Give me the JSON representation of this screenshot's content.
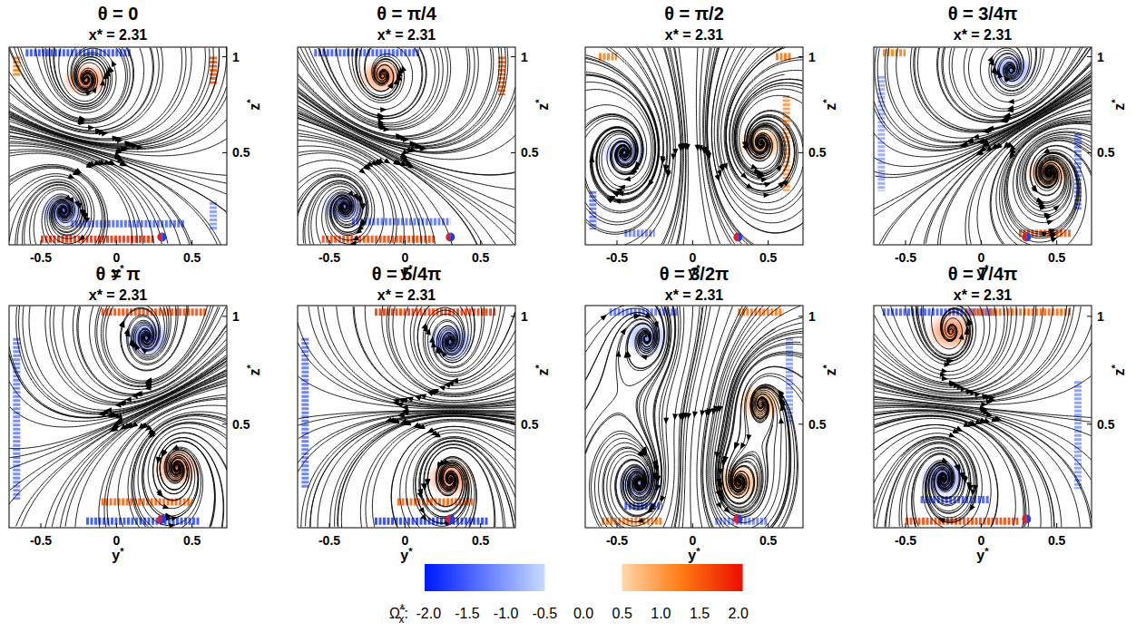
{
  "chart_data": {
    "type": "streamline",
    "xlabel": "y*",
    "ylabel": "z*",
    "xlim": [
      -0.71,
      0.73
    ],
    "ylim": [
      0.02,
      1.05
    ],
    "xticks": [
      -0.5,
      0,
      0.5
    ],
    "yticks": [
      0.5,
      1
    ],
    "probe": {
      "y": 0.3,
      "z": 0.06
    },
    "colorbar": {
      "base": "Ω̃",
      "sub": "x",
      "sup": "*",
      "end": ":",
      "range": [
        -2.05,
        2.05
      ],
      "ticks": [
        {
          "value": -2,
          "label": "-2.0"
        },
        {
          "value": -1.5,
          "label": "-1.5"
        },
        {
          "value": -1,
          "label": "-1.0"
        },
        {
          "value": -0.5,
          "label": "-0.5"
        },
        {
          "value": 0,
          "label": "0.0"
        },
        {
          "value": 0.5,
          "label": "0.5"
        },
        {
          "value": 1,
          "label": "1.0"
        },
        {
          "value": 1.5,
          "label": "1.5"
        },
        {
          "value": 2,
          "label": "2.0"
        }
      ]
    },
    "panels": [
      {
        "title": "θ = 0",
        "subtitle": "x* = 2.31",
        "vortices": [
          {
            "y": -0.2,
            "z": 0.88,
            "strength": 1.5
          },
          {
            "y": -0.35,
            "z": 0.2,
            "strength": -1.5
          }
        ],
        "wall_vorticity": [
          [
            -0.6,
            1.02,
            0.1,
            1.02,
            -1.6
          ],
          [
            0.64,
            1.0,
            0.64,
            0.85,
            1.5
          ],
          [
            -0.5,
            0.05,
            0.25,
            0.05,
            1.8
          ],
          [
            -0.3,
            0.13,
            0.45,
            0.13,
            -1.4
          ],
          [
            -0.66,
            1.0,
            -0.66,
            0.9,
            1.2
          ],
          [
            0.64,
            0.1,
            0.64,
            0.25,
            -1.0
          ]
        ]
      },
      {
        "title": "θ = π/4",
        "subtitle": "x* = 2.31",
        "vortices": [
          {
            "y": -0.15,
            "z": 0.9,
            "strength": 1.4
          },
          {
            "y": -0.4,
            "z": 0.22,
            "strength": -1.4
          }
        ],
        "wall_vorticity": [
          [
            -0.6,
            1.02,
            0.1,
            1.02,
            -1.5
          ],
          [
            -0.55,
            0.05,
            0.2,
            0.05,
            1.6
          ],
          [
            -0.35,
            0.14,
            0.3,
            0.14,
            -1.3
          ],
          [
            0.64,
            1.0,
            0.64,
            0.8,
            1.4
          ]
        ]
      },
      {
        "title": "θ = π/2",
        "subtitle": "x* = 2.31",
        "vortices": [
          {
            "y": -0.45,
            "z": 0.5,
            "strength": -1.2
          },
          {
            "y": 0.45,
            "z": 0.55,
            "strength": 1.2
          }
        ],
        "wall_vorticity": [
          [
            -0.66,
            0.3,
            -0.66,
            0.1,
            -1.3
          ],
          [
            0.62,
            0.8,
            0.62,
            0.3,
            1.0
          ],
          [
            -0.62,
            1.0,
            -0.5,
            1.0,
            1.2
          ],
          [
            0.55,
            1.0,
            0.65,
            1.0,
            1.3
          ],
          [
            -0.45,
            0.08,
            -0.25,
            0.08,
            -1.2
          ]
        ]
      },
      {
        "title": "θ = 3/4π",
        "subtitle": "x* = 2.31",
        "vortices": [
          {
            "y": 0.2,
            "z": 0.93,
            "strength": -1.3
          },
          {
            "y": 0.45,
            "z": 0.4,
            "strength": 1.3
          }
        ],
        "wall_vorticity": [
          [
            0.25,
            0.08,
            0.6,
            0.08,
            1.5
          ],
          [
            0.64,
            0.6,
            0.64,
            0.2,
            -1.2
          ],
          [
            -0.65,
            1.02,
            -0.5,
            1.02,
            1.2
          ],
          [
            -0.66,
            0.9,
            -0.66,
            0.3,
            -0.9
          ]
        ]
      },
      {
        "title": "θ = π",
        "subtitle": "x* = 2.31",
        "vortices": [
          {
            "y": 0.2,
            "z": 0.9,
            "strength": -1.5
          },
          {
            "y": 0.4,
            "z": 0.3,
            "strength": 1.5
          }
        ],
        "wall_vorticity": [
          [
            -0.1,
            1.02,
            0.6,
            1.02,
            1.6
          ],
          [
            -0.66,
            0.9,
            -0.66,
            0.15,
            -1.2
          ],
          [
            -0.2,
            0.05,
            0.55,
            0.05,
            -1.6
          ],
          [
            -0.1,
            0.14,
            0.5,
            0.14,
            1.4
          ]
        ]
      },
      {
        "title": "θ = 5/4π",
        "subtitle": "x* = 2.31",
        "vortices": [
          {
            "y": 0.3,
            "z": 0.88,
            "strength": -1.5
          },
          {
            "y": 0.3,
            "z": 0.25,
            "strength": 1.5
          }
        ],
        "wall_vorticity": [
          [
            -0.2,
            1.02,
            0.6,
            1.02,
            1.7
          ],
          [
            -0.66,
            0.9,
            -0.66,
            0.2,
            -1.3
          ],
          [
            -0.2,
            0.05,
            0.55,
            0.05,
            -1.7
          ],
          [
            -0.05,
            0.14,
            0.45,
            0.14,
            1.4
          ]
        ]
      },
      {
        "title": "θ = 3/2π",
        "subtitle": "x* = 2.31",
        "vortices": [
          {
            "y": -0.3,
            "z": 0.9,
            "strength": -1.1
          },
          {
            "y": 0.45,
            "z": 0.6,
            "strength": 1.1
          },
          {
            "y": -0.35,
            "z": 0.23,
            "strength": -1.2
          },
          {
            "y": 0.3,
            "z": 0.23,
            "strength": 1.2
          }
        ],
        "wall_vorticity": [
          [
            -0.55,
            1.02,
            -0.1,
            1.02,
            -1.3
          ],
          [
            0.3,
            1.02,
            0.6,
            1.02,
            1.3
          ],
          [
            -0.6,
            0.05,
            -0.2,
            0.05,
            1.3
          ],
          [
            -0.45,
            0.12,
            -0.2,
            0.12,
            -1.5
          ],
          [
            0.15,
            0.05,
            0.5,
            0.05,
            -1.2
          ],
          [
            0.64,
            0.9,
            0.64,
            0.5,
            -1.0
          ]
        ]
      },
      {
        "title": "θ = 7/4π",
        "subtitle": "x* = 2.31",
        "vortices": [
          {
            "y": -0.2,
            "z": 0.93,
            "strength": 1.5
          },
          {
            "y": -0.25,
            "z": 0.25,
            "strength": -1.5
          }
        ],
        "wall_vorticity": [
          [
            -0.65,
            1.02,
            0.1,
            1.02,
            -1.5
          ],
          [
            -0.1,
            1.02,
            0.6,
            1.02,
            1.4
          ],
          [
            -0.5,
            0.05,
            0.25,
            0.05,
            1.6
          ],
          [
            -0.4,
            0.15,
            0.05,
            0.15,
            -1.5
          ],
          [
            0.64,
            0.7,
            0.64,
            0.2,
            -1.0
          ]
        ]
      }
    ]
  }
}
